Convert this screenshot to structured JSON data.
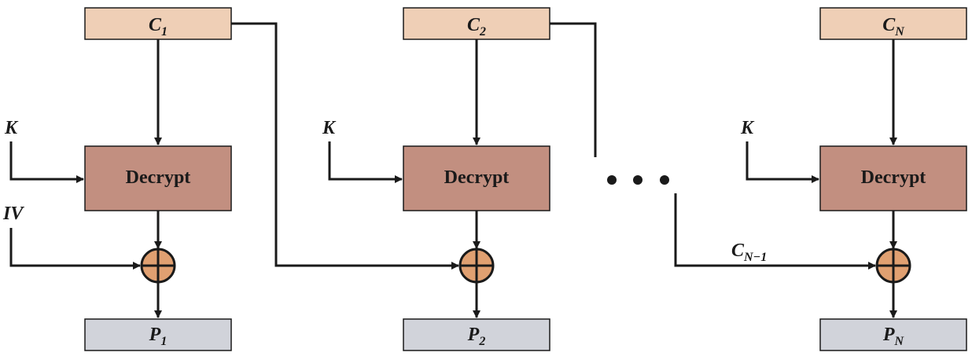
{
  "colors": {
    "ciphertext_fill": "#efcfb6",
    "decrypt_fill": "#c28f80",
    "plaintext_fill": "#d1d3da",
    "xor_fill": "#e0a071",
    "line": "#1a1a1a"
  },
  "stages": [
    {
      "ciphertext": {
        "base": "C",
        "sub": "1"
      },
      "key": "K",
      "decrypt": "Decrypt",
      "chain_input": "IV",
      "plaintext": {
        "base": "P",
        "sub": "1"
      }
    },
    {
      "ciphertext": {
        "base": "C",
        "sub": "2"
      },
      "key": "K",
      "decrypt": "Decrypt",
      "plaintext": {
        "base": "P",
        "sub": "2"
      }
    },
    {
      "ciphertext": {
        "base": "C",
        "sub": "N"
      },
      "key": "K",
      "decrypt": "Decrypt",
      "chain_input": {
        "base": "C",
        "sub": "N−1"
      },
      "plaintext": {
        "base": "P",
        "sub": "N"
      }
    }
  ]
}
